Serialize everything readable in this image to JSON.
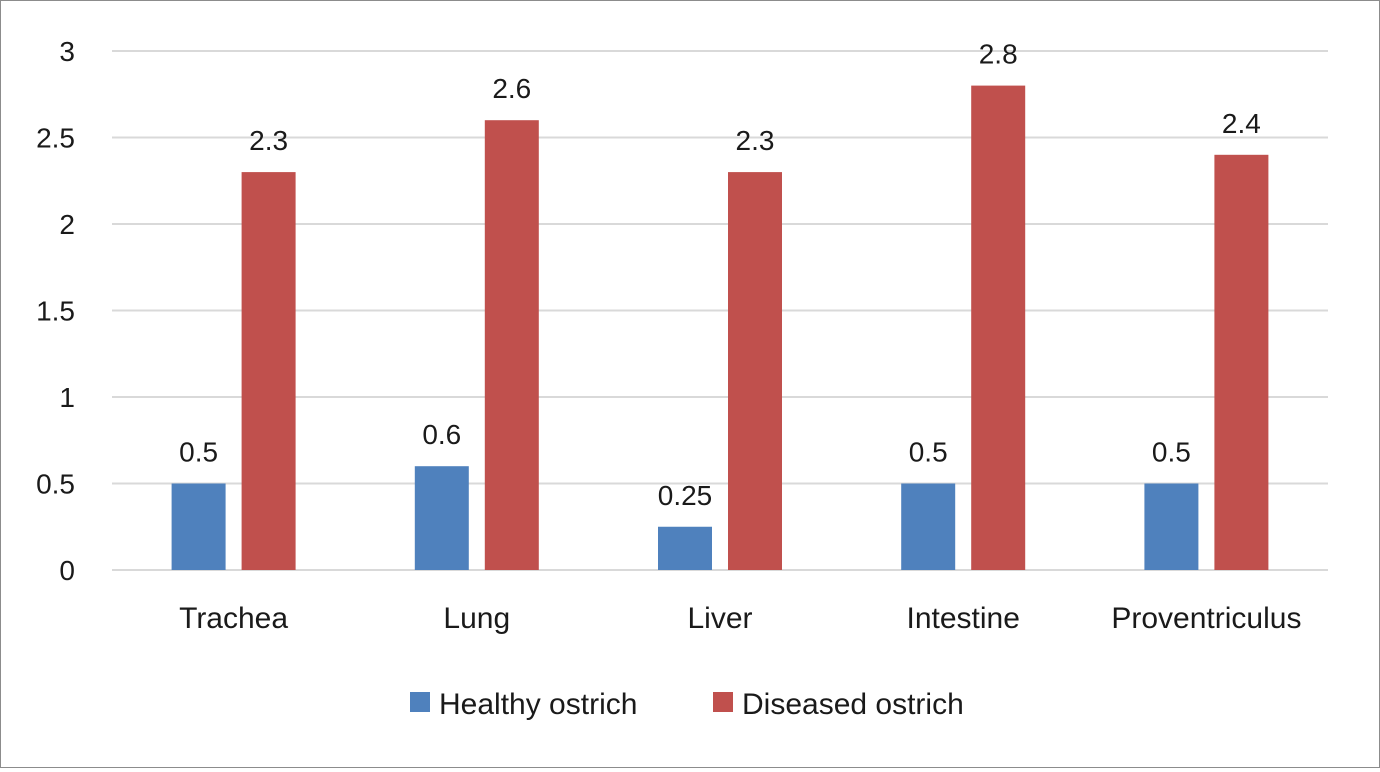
{
  "chart_data": {
    "type": "bar",
    "categories": [
      "Trachea",
      "Lung",
      "Liver",
      "Intestine",
      "Proventriculus"
    ],
    "series": [
      {
        "name": "Healthy ostrich",
        "values": [
          0.5,
          0.6,
          0.25,
          0.5,
          0.5
        ],
        "labels": [
          "0.5",
          "0.6",
          "0.25",
          "0.5",
          "0.5"
        ],
        "color": "#4f81bd"
      },
      {
        "name": "Diseased ostrich",
        "values": [
          2.3,
          2.6,
          2.3,
          2.8,
          2.4
        ],
        "labels": [
          "2.3",
          "2.6",
          "2.3",
          "2.8",
          "2.4"
        ],
        "color": "#c0504d"
      }
    ],
    "yticks": [
      "0",
      "0.5",
      "1",
      "1.5",
      "2",
      "2.5",
      "3"
    ],
    "ylim": [
      0,
      3
    ],
    "grid": true,
    "legend_position": "bottom"
  }
}
